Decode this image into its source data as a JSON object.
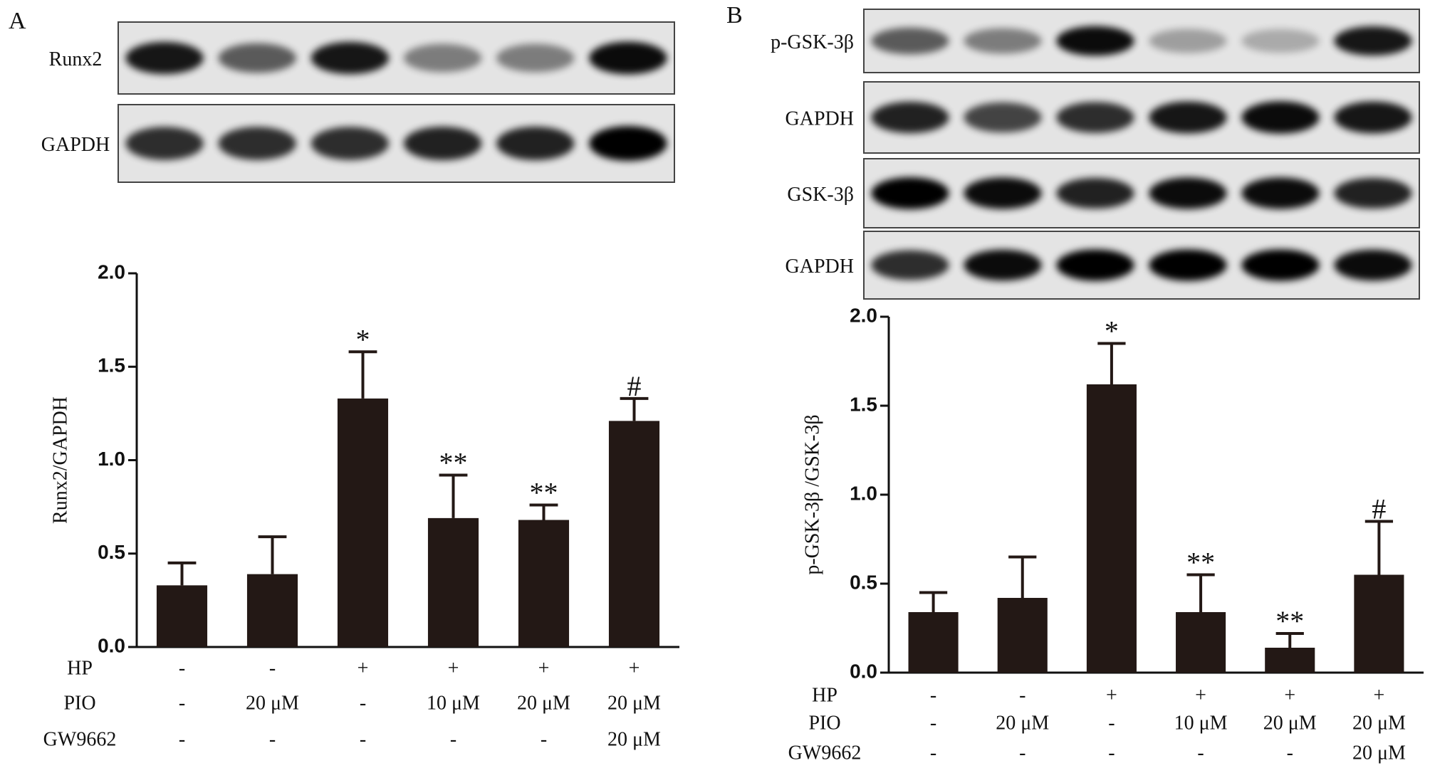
{
  "chart_data": [
    {
      "type": "bar",
      "panel": "A",
      "blots": [
        "Runx2",
        "GAPDH"
      ],
      "ylabel": "Runx2/GAPDH",
      "values": [
        0.33,
        0.39,
        1.33,
        0.69,
        0.68,
        1.21
      ],
      "errors": [
        0.12,
        0.2,
        0.25,
        0.23,
        0.08,
        0.12
      ],
      "annotations": [
        null,
        null,
        "*",
        "**",
        "**",
        "#"
      ],
      "color": "#231815",
      "ylim": [
        0,
        2
      ],
      "yticks": [
        {
          "value": 0,
          "label": "0.0"
        },
        {
          "value": 0.5,
          "label": "0.5"
        },
        {
          "value": 1,
          "label": "1.0"
        },
        {
          "value": 1.5,
          "label": "1.5"
        },
        {
          "value": 2,
          "label": "2.0"
        }
      ],
      "conditions": [
        {
          "label": "HP",
          "values": [
            "-",
            "-",
            "+",
            "+",
            "+",
            "+"
          ]
        },
        {
          "label": "PIO",
          "values": [
            "-",
            "20 μM",
            "-",
            "10 μM",
            "20 μM",
            "20 μM"
          ]
        },
        {
          "label": "GW9662",
          "values": [
            "-",
            "-",
            "-",
            "-",
            "-",
            "20 μM"
          ]
        }
      ]
    },
    {
      "type": "bar",
      "panel": "B",
      "blots": [
        "p-GSK-3β",
        "GAPDH",
        "GSK-3β",
        "GAPDH"
      ],
      "ylabel": "p-GSK-3β /GSK-3β",
      "values": [
        0.34,
        0.42,
        1.62,
        0.34,
        0.14,
        0.55
      ],
      "errors": [
        0.11,
        0.23,
        0.23,
        0.21,
        0.08,
        0.3
      ],
      "annotations": [
        null,
        null,
        "*",
        "**",
        "**",
        "#"
      ],
      "color": "#231815",
      "ylim": [
        0,
        2
      ],
      "yticks": [
        {
          "value": 0,
          "label": "0.0"
        },
        {
          "value": 0.5,
          "label": "0.5"
        },
        {
          "value": 1,
          "label": "1.0"
        },
        {
          "value": 1.5,
          "label": "1.5"
        },
        {
          "value": 2,
          "label": "2.0"
        }
      ],
      "conditions": [
        {
          "label": "HP",
          "values": [
            "-",
            "-",
            "+",
            "+",
            "+",
            "+"
          ]
        },
        {
          "label": "PIO",
          "values": [
            "-",
            "20 μM",
            "-",
            "10 μM",
            "20 μM",
            "20 μM"
          ]
        },
        {
          "label": "GW9662",
          "values": [
            "-",
            "-",
            "-",
            "-",
            "-",
            "20 μM"
          ]
        }
      ]
    }
  ]
}
